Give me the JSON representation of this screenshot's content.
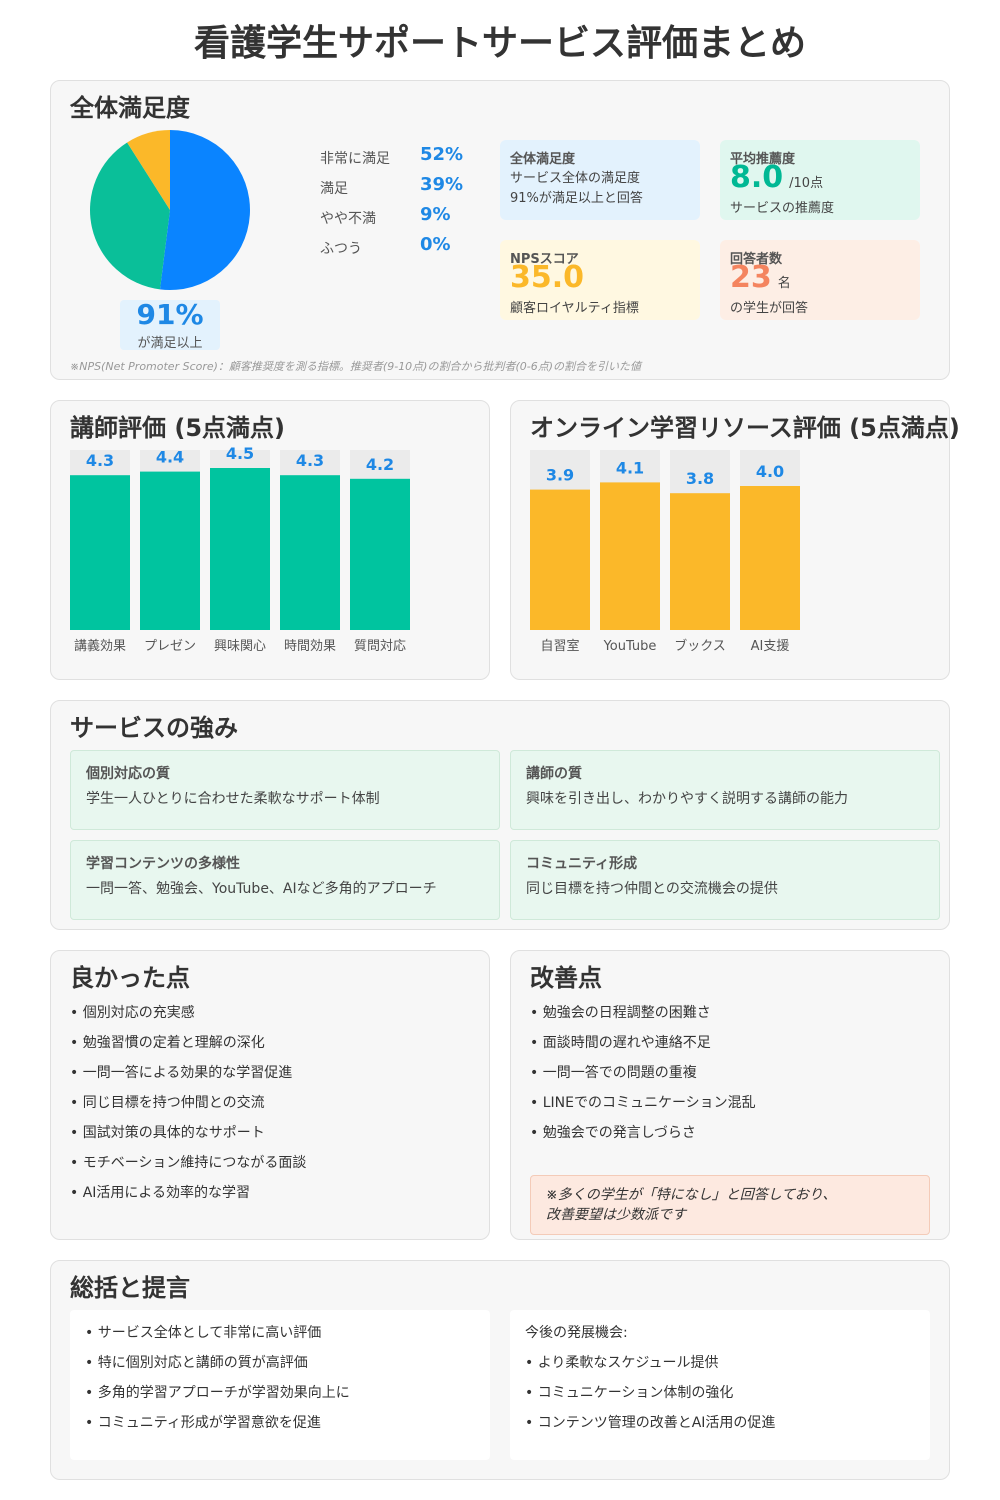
{
  "title": "看護学生サポートサービス評価まとめ",
  "overall": {
    "title": "全体満足度",
    "pie_legend": [
      {
        "label": "非常に満足",
        "value": "52%"
      },
      {
        "label": "満足",
        "value": "39%"
      },
      {
        "label": "やや不満",
        "value": "9%"
      },
      {
        "label": "ふつう",
        "value": "0%"
      }
    ],
    "pie_center_value": "91%",
    "pie_center_label": "が満足以上",
    "stats": {
      "satisfaction": {
        "title": "全体満足度",
        "line1": "サービス全体の満足度",
        "line2": "91%が満足以上と回答"
      },
      "recommend": {
        "title": "平均推薦度",
        "value": "8.0",
        "unit": "/10点",
        "desc": "サービスの推薦度"
      },
      "nps": {
        "title": "NPSスコア",
        "value": "35.0",
        "desc": "顧客ロイヤルティ指標"
      },
      "respondents": {
        "title": "回答者数",
        "value": "23",
        "unit": "名",
        "desc": "の学生が回答"
      }
    },
    "footnote": "※NPS(Net Promoter Score)：顧客推奨度を測る指標。推奨者(9-10点)の割合から批判者(0-6点)の割合を引いた値",
    "colors": {
      "pie": [
        "#0a84ff",
        "#0abf99",
        "#fbb829",
        "#efe2de"
      ]
    }
  },
  "instructor": {
    "title": "講師評価 (5点満点)"
  },
  "online": {
    "title": "オンライン学習リソース評価 (5点満点)"
  },
  "strengths": {
    "title": "サービスの強み",
    "items": [
      {
        "title": "個別対応の質",
        "desc": "学生一人ひとりに合わせた柔軟なサポート体制"
      },
      {
        "title": "講師の質",
        "desc": "興味を引き出し、わかりやすく説明する講師の能力"
      },
      {
        "title": "学習コンテンツの多様性",
        "desc": "一問一答、勉強会、YouTube、AIなど多角的アプローチ"
      },
      {
        "title": "コミュニティ形成",
        "desc": "同じ目標を持つ仲間との交流機会の提供"
      }
    ]
  },
  "good": {
    "title": "良かった点",
    "items": [
      "• 個別対応の充実感",
      "• 勉強習慣の定着と理解の深化",
      "• 一問一答による効果的な学習促進",
      "• 同じ目標を持つ仲間との交流",
      "• 国試対策の具体的なサポート",
      "• モチベーション維持につながる面談",
      "• AI活用による効率的な学習"
    ]
  },
  "improve": {
    "title": "改善点",
    "items": [
      "• 勉強会の日程調整の困難さ",
      "• 面談時間の遅れや連絡不足",
      "• 一問一答での問題の重複",
      "• LINEでのコミュニケーション混乱",
      "• 勉強会での発言しづらさ"
    ],
    "note_line1": "※多くの学生が「特になし」と回答しており、",
    "note_line2": "改善要望は少数派です"
  },
  "summary": {
    "title": "総括と提言",
    "left": [
      "• サービス全体として非常に高い評価",
      "• 特に個別対応と講師の質が高評価",
      "• 多角的学習アプローチが学習効果向上に",
      "• コミュニティ形成が学習意欲を促進"
    ],
    "right_heading": "今後の発展機会:",
    "right": [
      "• より柔軟なスケジュール提供",
      "• コミュニケーション体制の強化",
      "• コンテンツ管理の改善とAI活用の促進"
    ]
  },
  "chart_data": [
    {
      "type": "pie",
      "title": "全体満足度",
      "categories": [
        "非常に満足",
        "満足",
        "やや不満",
        "ふつう"
      ],
      "values": [
        52,
        39,
        9,
        0
      ],
      "colors": [
        "#0a84ff",
        "#0abf99",
        "#fbb829",
        "#efe2de"
      ]
    },
    {
      "type": "bar",
      "title": "講師評価 (5点満点)",
      "categories": [
        "講義効果",
        "プレゼン",
        "興味関心",
        "時間効果",
        "質問対応"
      ],
      "values": [
        4.3,
        4.4,
        4.5,
        4.3,
        4.2
      ],
      "ylim": [
        0,
        5
      ],
      "color": "#00c49f"
    },
    {
      "type": "bar",
      "title": "オンライン学習リソース評価 (5点満点)",
      "categories": [
        "自習室",
        "YouTube",
        "ブックス",
        "AI支援"
      ],
      "values": [
        3.9,
        4.1,
        3.8,
        4.0
      ],
      "ylim": [
        0,
        5
      ],
      "color": "#fbb829"
    }
  ]
}
